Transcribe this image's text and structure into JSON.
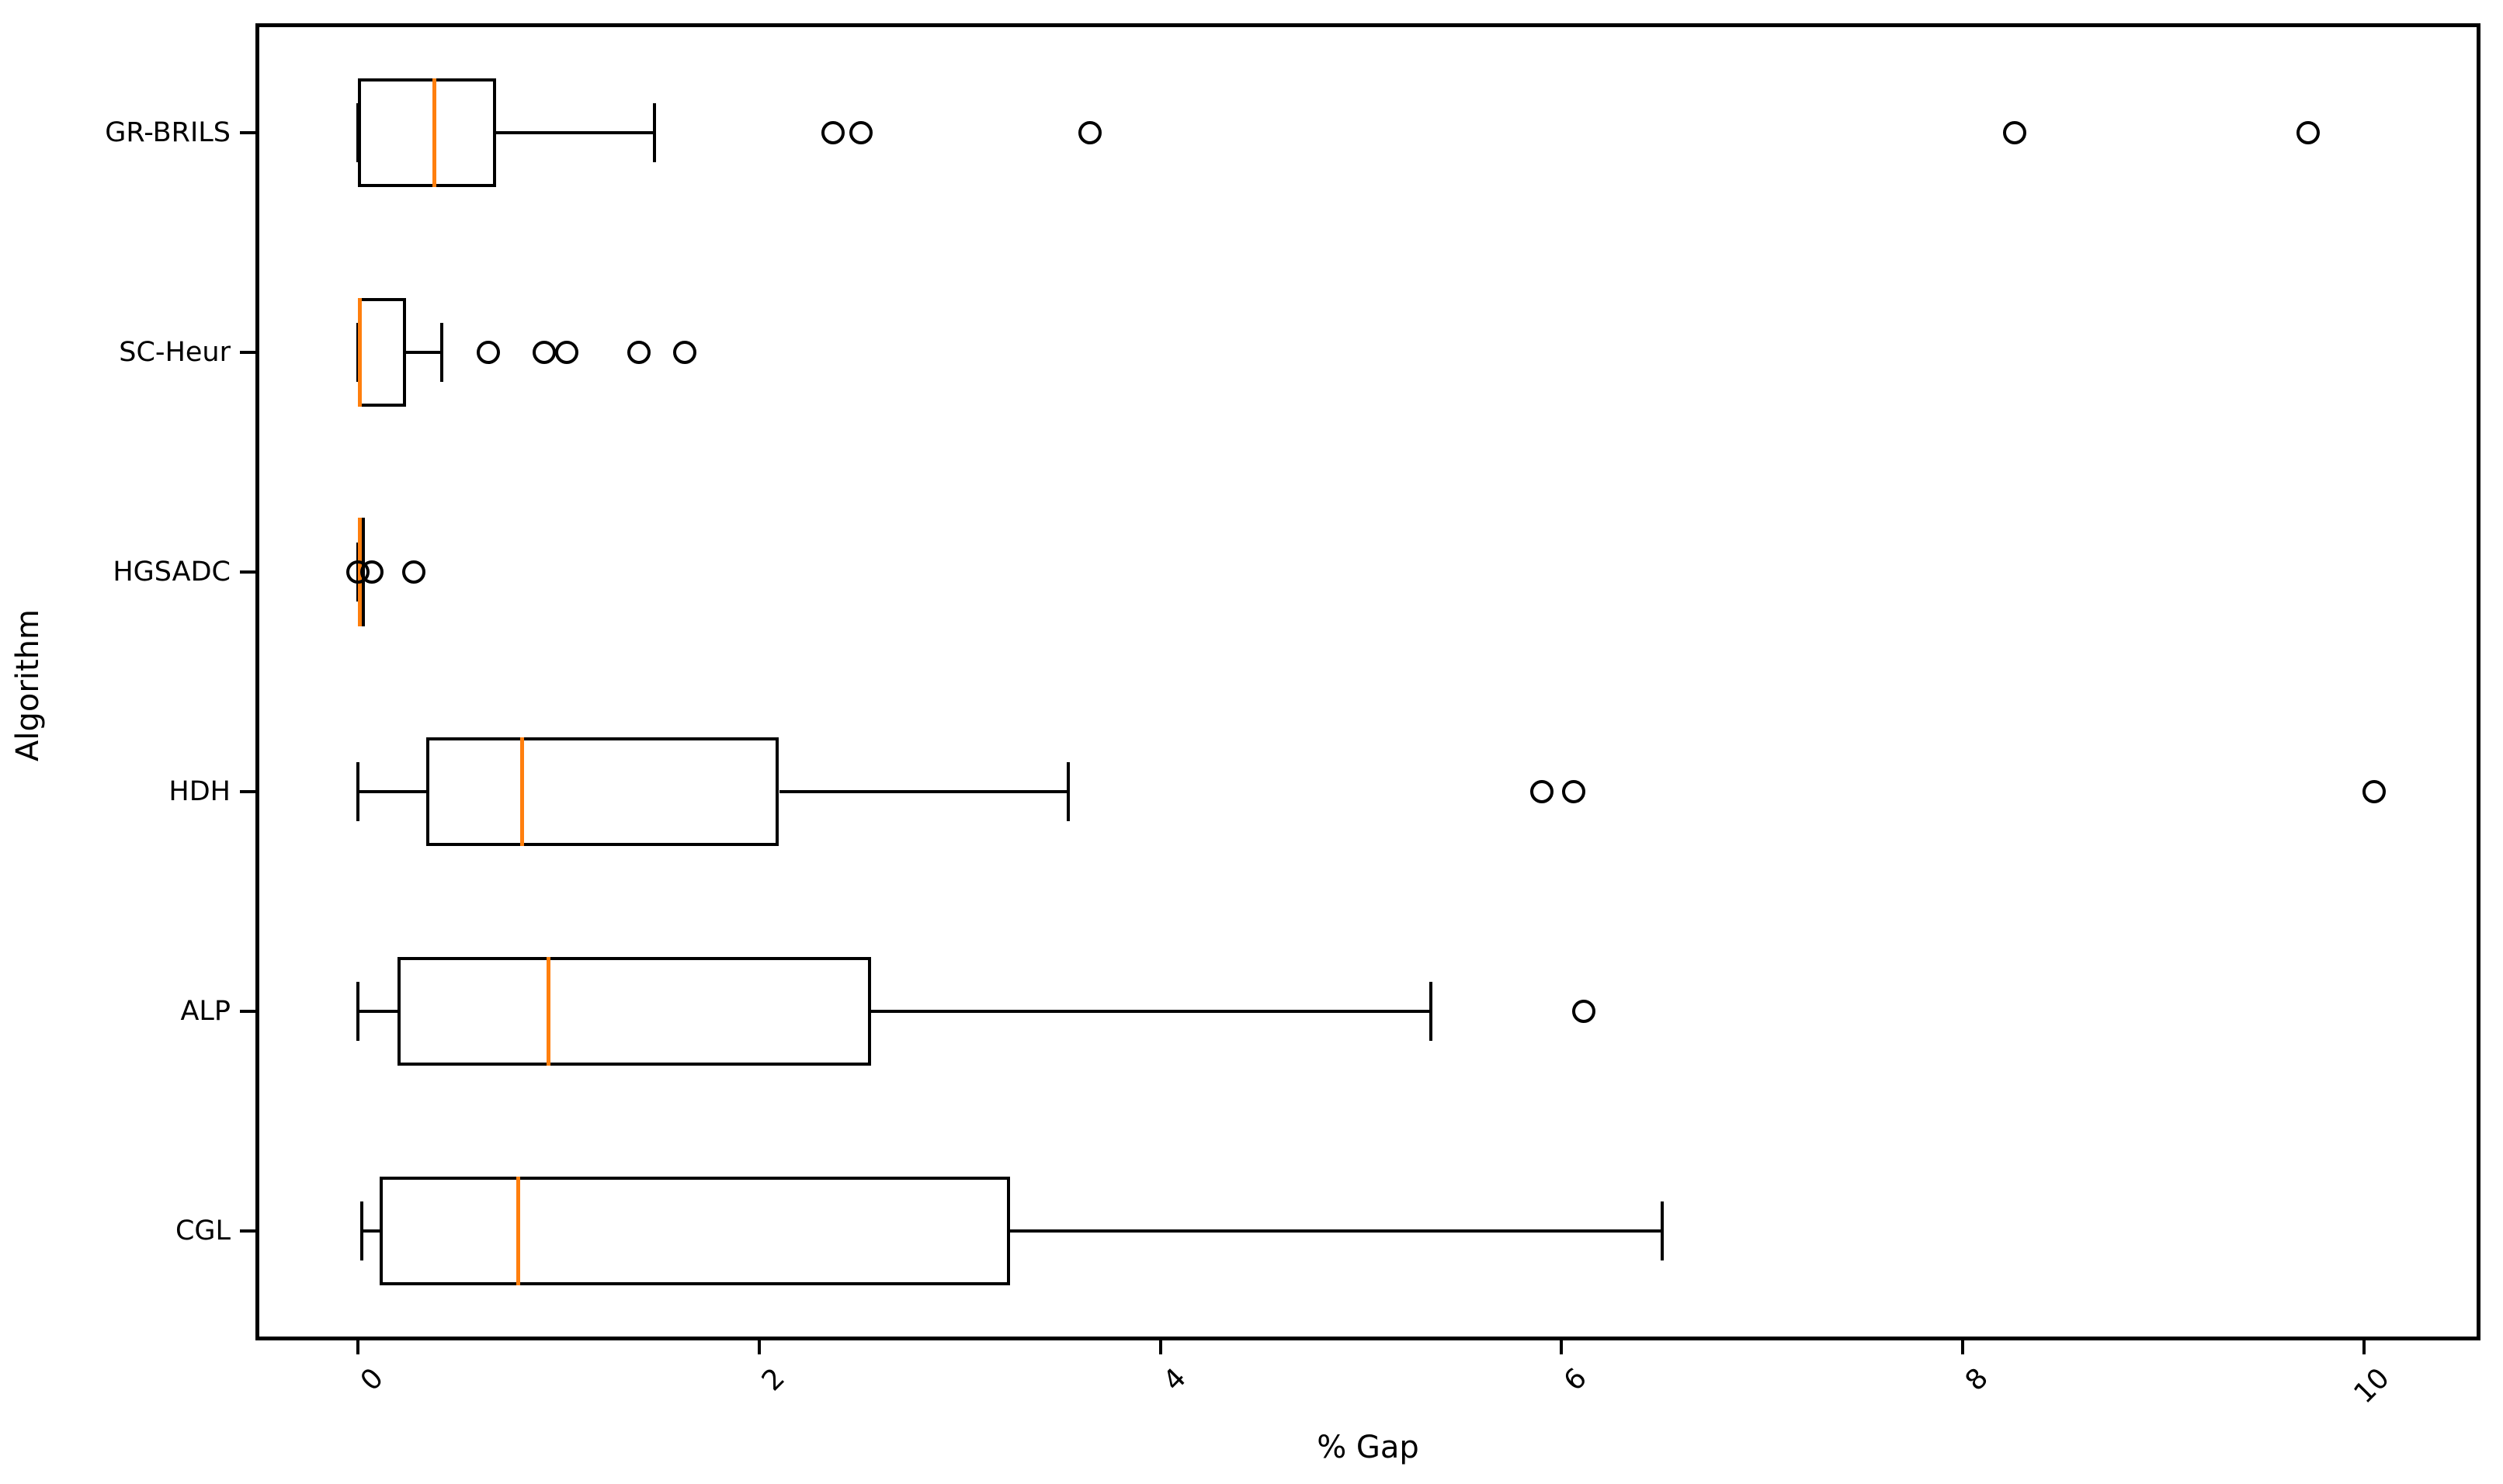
{
  "figure": {
    "background_color": "#ffffff",
    "line_color": "#000000",
    "median_color": "#ff7f0e"
  },
  "chart_data": {
    "type": "boxplot",
    "orientation": "horizontal",
    "title": "",
    "xlabel": "% Gap",
    "ylabel": "Algorithm",
    "xlim": [
      -0.51,
      10.58
    ],
    "x_ticks": [
      "0",
      "2",
      "4",
      "6",
      "8",
      "10"
    ],
    "x_tick_values": [
      0,
      2,
      4,
      6,
      8,
      10
    ],
    "x_tick_rotation_deg": 45,
    "grid": false,
    "legend": "none",
    "categories_top_to_bottom": [
      "GR-BRILS",
      "SC-Heur",
      "HGSADC",
      "HDH",
      "ALP",
      "CGL"
    ],
    "series": [
      {
        "name": "GR-BRILS",
        "whislo": 0.0,
        "q1": 0.0,
        "med": 0.38,
        "q3": 0.69,
        "whishi": 1.48,
        "outliers": [
          2.37,
          2.51,
          3.65,
          8.26,
          9.72
        ]
      },
      {
        "name": "SC-Heur",
        "whislo": 0.0,
        "q1": 0.0,
        "med": 0.01,
        "q3": 0.24,
        "whishi": 0.42,
        "outliers": [
          0.65,
          0.93,
          1.04,
          1.4,
          1.63
        ]
      },
      {
        "name": "HGSADC",
        "whislo": 0.0,
        "q1": 0.0,
        "med": 0.01,
        "q3": 0.02,
        "whishi": 0.02,
        "outliers": [
          0.0,
          0.07,
          0.28
        ]
      },
      {
        "name": "HDH",
        "whislo": 0.0,
        "q1": 0.34,
        "med": 0.82,
        "q3": 2.1,
        "whishi": 3.54,
        "outliers": [
          5.9,
          6.06,
          10.05
        ]
      },
      {
        "name": "ALP",
        "whislo": 0.0,
        "q1": 0.2,
        "med": 0.95,
        "q3": 2.56,
        "whishi": 5.35,
        "outliers": [
          6.11
        ]
      },
      {
        "name": "CGL",
        "whislo": 0.02,
        "q1": 0.11,
        "med": 0.8,
        "q3": 3.25,
        "whishi": 6.5,
        "outliers": []
      }
    ]
  }
}
